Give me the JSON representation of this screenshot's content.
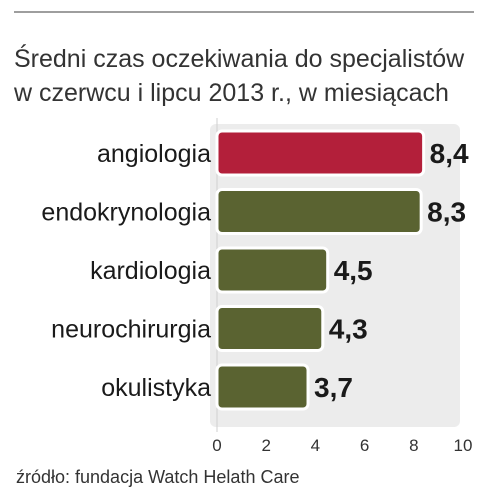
{
  "title_line1": "Średni czas oczekiwania do specjalistów",
  "title_line2": "w czerwcu i lipcu 2013 r., w miesiącach",
  "source": "źródło: fundacja Watch Helath Care",
  "colors": {
    "highlight": "#b31f3a",
    "bar": "#5a6331",
    "bar_stroke": "#ffffff",
    "panel": "#ececec"
  },
  "chart_data": {
    "type": "bar",
    "orientation": "horizontal",
    "title": "Średni czas oczekiwania do specjalistów w czerwcu i lipcu 2013 r., w miesiącach",
    "categories": [
      "angiologia",
      "endokrynologia",
      "kardiologia",
      "neurochirurgia",
      "okulistyka"
    ],
    "values": [
      8.4,
      8.3,
      4.5,
      4.3,
      3.7
    ],
    "value_labels": [
      "8,4",
      "8,3",
      "4,5",
      "4,3",
      "3,7"
    ],
    "highlight_index": 0,
    "xlim": [
      0,
      10
    ],
    "x_ticks": [
      0,
      2,
      4,
      6,
      8,
      10
    ],
    "xlabel": "",
    "ylabel": "",
    "grid": false,
    "legend": "none"
  }
}
